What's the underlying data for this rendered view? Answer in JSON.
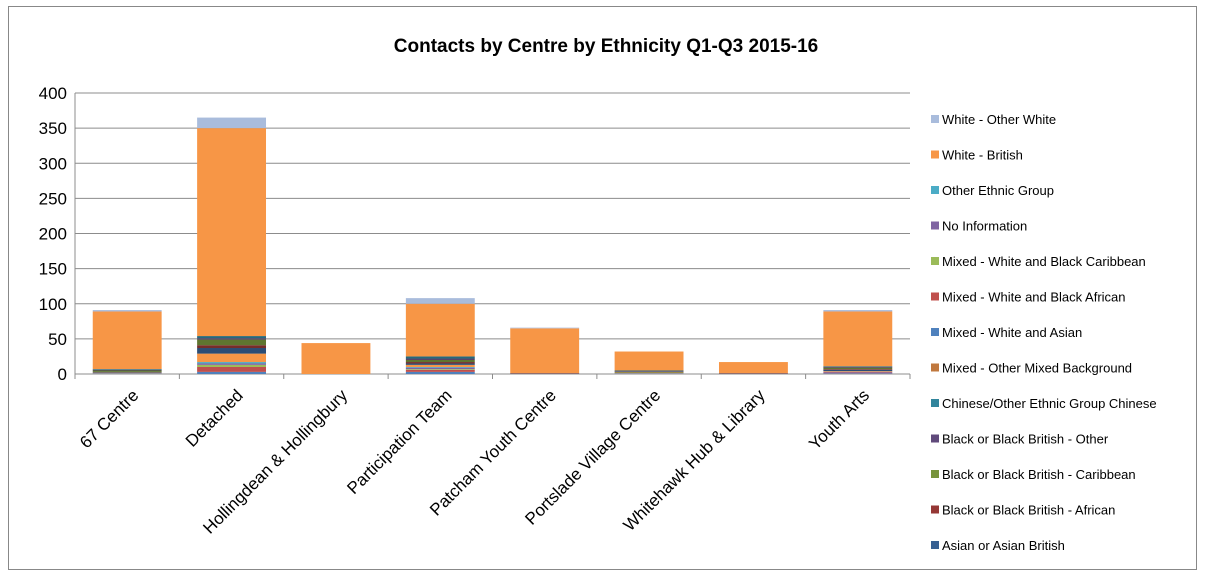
{
  "chart_data": {
    "type": "bar",
    "stacked": true,
    "title": "Contacts by Centre by Ethnicity Q1-Q3 2015-16",
    "xlabel": "",
    "ylabel": "",
    "ylim": [
      0,
      400
    ],
    "yticks": [
      "0",
      "50",
      "100",
      "150",
      "200",
      "250",
      "300",
      "350",
      "400"
    ],
    "grid": true,
    "legend_position": "right",
    "categories": [
      "67 Centre",
      "Detached",
      "Hollingdean & Hollingbury",
      "Participation Team",
      "Patcham Youth Centre",
      "Portslade Village Centre",
      "Whitehawk Hub & Library",
      "Youth Arts"
    ],
    "series": [
      {
        "name": "Asian or Asian British",
        "color": "#4F81BD",
        "values": [
          1,
          3,
          0,
          3,
          0,
          1,
          0,
          1
        ]
      },
      {
        "name": "Black or Black British - African",
        "color": "#C0504D",
        "values": [
          0,
          7,
          0,
          3,
          0,
          0,
          0,
          1
        ]
      },
      {
        "name": "Black or Black British - Caribbean",
        "color": "#9BBB59",
        "values": [
          0,
          3,
          0,
          1,
          0,
          0,
          0,
          0
        ]
      },
      {
        "name": "Black or Black British - Other",
        "color": "#8064A2",
        "values": [
          0,
          2,
          0,
          2,
          0,
          0,
          0,
          1
        ]
      },
      {
        "name": "Chinese/Other Ethnic Group Chinese",
        "color": "#4BACC6",
        "values": [
          0,
          2,
          0,
          1,
          0,
          0,
          0,
          0
        ]
      },
      {
        "name": "Mixed - Other Mixed Background",
        "color": "#F79646",
        "values": [
          1,
          12,
          0,
          3,
          0,
          1,
          0,
          1
        ]
      },
      {
        "name": "Mixed - White and Asian",
        "color": "#2C4D75",
        "values": [
          1,
          8,
          0,
          2,
          0,
          0,
          0,
          2
        ]
      },
      {
        "name": "Mixed - White and Black African",
        "color": "#772C2A",
        "values": [
          0,
          4,
          0,
          2,
          0,
          0,
          0,
          1
        ]
      },
      {
        "name": "Mixed - White and Black Caribbean",
        "color": "#5F7530",
        "values": [
          2,
          8,
          0,
          3,
          0,
          1,
          0,
          2
        ]
      },
      {
        "name": "No Information",
        "color": "#4D3B62",
        "values": [
          1,
          2,
          0,
          2,
          1,
          1,
          1,
          1
        ]
      },
      {
        "name": "Other Ethnic Group",
        "color": "#276A7C",
        "values": [
          1,
          3,
          0,
          3,
          0,
          1,
          0,
          1
        ]
      },
      {
        "name": "White - British",
        "color": "#F79646",
        "values": [
          82,
          296,
          44,
          75,
          64,
          27,
          16,
          78
        ]
      },
      {
        "name": "White - Other White",
        "color": "#A9BCDC",
        "values": [
          2,
          15,
          0,
          8,
          1,
          0,
          0,
          2
        ]
      }
    ],
    "legend_order": [
      "White - Other White",
      "White - British",
      "Other Ethnic Group",
      "No Information",
      "Mixed - White and Black Caribbean",
      "Mixed - White and Black African",
      "Mixed - White and Asian",
      "Mixed - Other Mixed Background",
      "Chinese/Other Ethnic Group Chinese",
      "Black or Black British - Other",
      "Black or Black British - Caribbean",
      "Black or Black British - African",
      "Asian or Asian British"
    ],
    "legend_colors": {
      "White - Other White": "#A9BCDC",
      "White - British": "#F79646",
      "Other Ethnic Group": "#4BACC6",
      "No Information": "#8064A2",
      "Mixed - White and Black Caribbean": "#9BBB59",
      "Mixed - White and Black African": "#C0504D",
      "Mixed - White and Asian": "#4F81BD",
      "Mixed - Other Mixed Background": "#C0783E",
      "Chinese/Other Ethnic Group Chinese": "#31859C",
      "Black or Black British - Other": "#604A7B",
      "Black or Black British - Caribbean": "#77933C",
      "Black or Black British - African": "#953735",
      "Asian or Asian British": "#376092"
    }
  }
}
